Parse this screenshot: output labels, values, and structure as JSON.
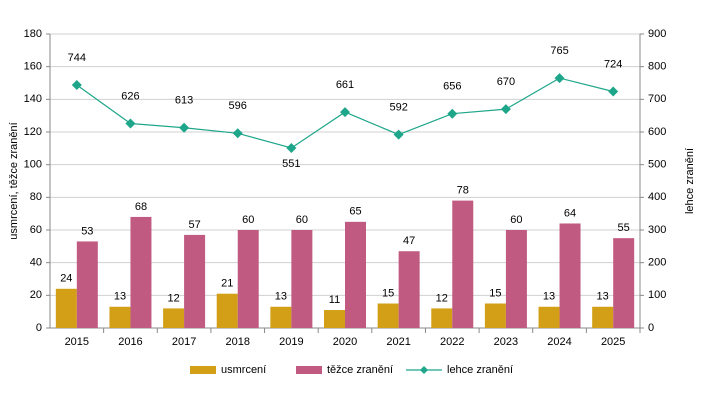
{
  "chart_data": {
    "type": "bar",
    "categories": [
      "2015",
      "2016",
      "2017",
      "2018",
      "2019",
      "2020",
      "2021",
      "2022",
      "2023",
      "2024",
      "2025"
    ],
    "series": [
      {
        "name": "usmrcení",
        "color": "#d29f16",
        "values": [
          24,
          13,
          12,
          21,
          13,
          11,
          15,
          12,
          15,
          13,
          13
        ]
      },
      {
        "name": "těžce zranění",
        "color": "#c05a80",
        "values": [
          53,
          68,
          57,
          60,
          60,
          65,
          47,
          78,
          60,
          64,
          55
        ]
      },
      {
        "name": "lehce zranění",
        "color": "#1ea68a",
        "type": "line",
        "axis": "y2",
        "values": [
          744,
          626,
          613,
          596,
          551,
          661,
          592,
          656,
          670,
          765,
          724
        ]
      }
    ],
    "ylabel": "usmrcení, těžce zranění",
    "y2label": "lehce zranění",
    "ylim": [
      0,
      180
    ],
    "yticks": [
      0,
      20,
      40,
      60,
      80,
      100,
      120,
      140,
      160,
      180
    ],
    "y2lim": [
      0,
      900
    ],
    "y2ticks": [
      0,
      100,
      200,
      300,
      400,
      500,
      600,
      700,
      800,
      900
    ],
    "grid": true
  }
}
